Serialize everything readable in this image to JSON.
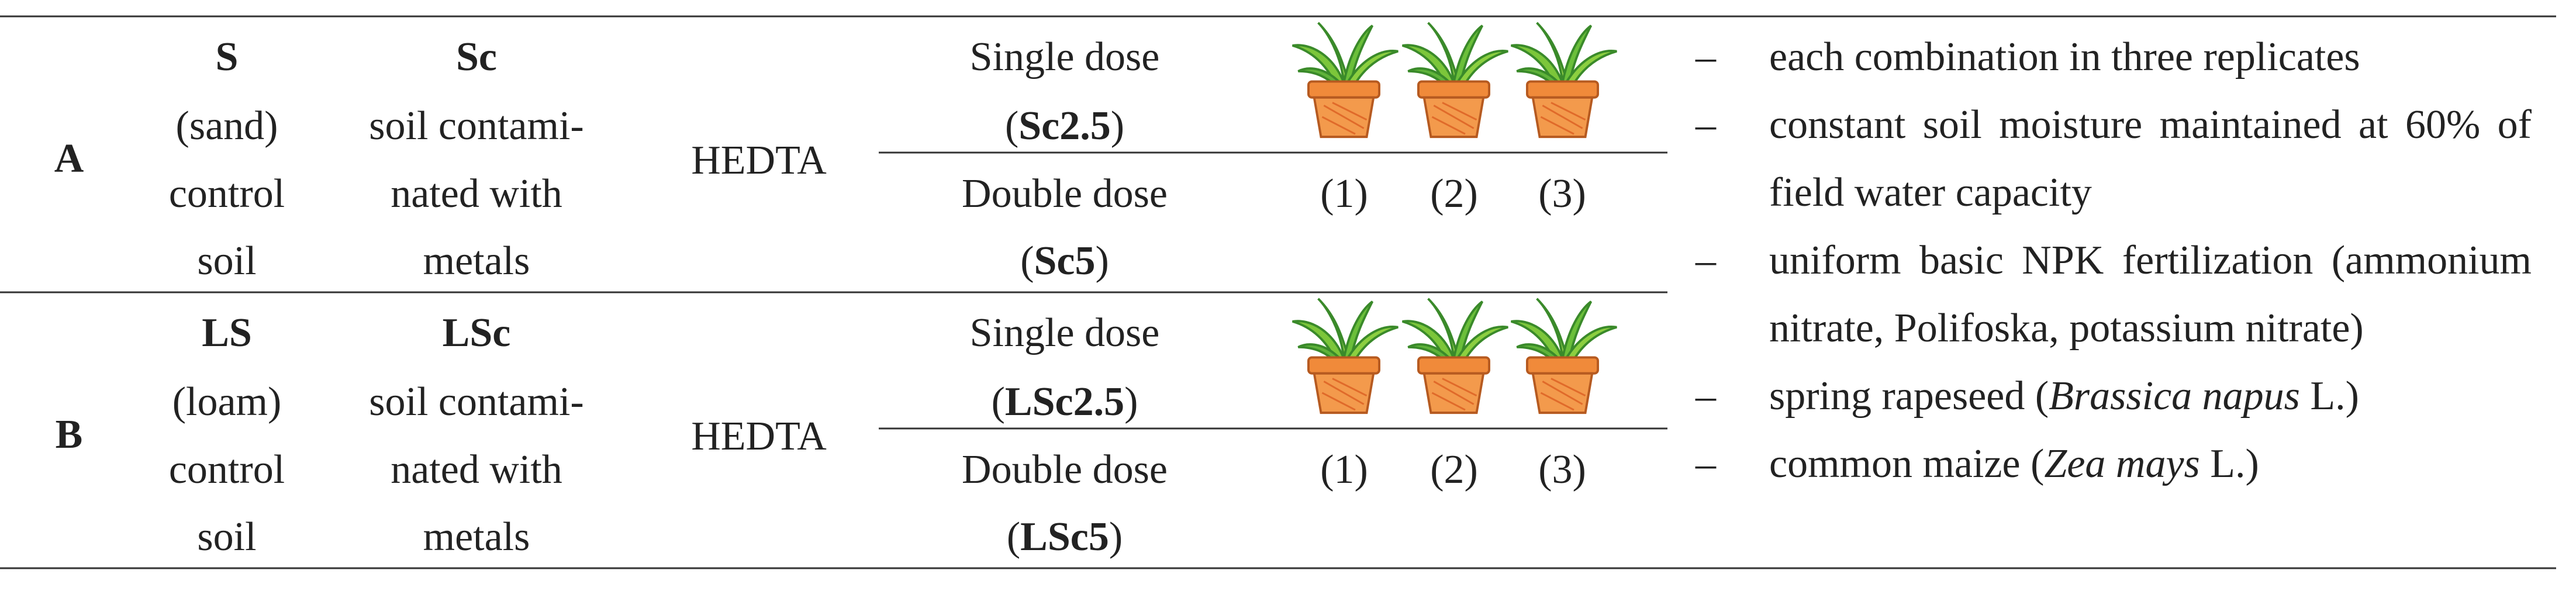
{
  "groups": [
    {
      "label": "A",
      "control": {
        "code": "S",
        "lines": [
          "(sand)",
          "control",
          "soil"
        ]
      },
      "contaminated": {
        "code": "Sc",
        "lines": [
          "soil contami-",
          "nated with",
          "metals"
        ]
      },
      "treatment": "HEDTA",
      "doses": [
        {
          "name": "Single dose",
          "code": [
            "(",
            "Sc2.5",
            ")"
          ]
        },
        {
          "name": "Double dose",
          "code": [
            "(",
            "Sc5",
            ")"
          ]
        }
      ],
      "replicates": [
        "(1)",
        "(2)",
        "(3)"
      ]
    },
    {
      "label": "B",
      "control": {
        "code": "LS",
        "lines": [
          "(loam)",
          "control",
          "soil"
        ]
      },
      "contaminated": {
        "code": "LSc",
        "lines": [
          "soil contami-",
          "nated with",
          "metals"
        ]
      },
      "treatment": "HEDTA",
      "doses": [
        {
          "name": "Single dose",
          "code": [
            "(",
            "LSc2.5",
            ")"
          ]
        },
        {
          "name": "Double dose",
          "code": [
            "(",
            "LSc5",
            ")"
          ]
        }
      ],
      "replicates": [
        "(1)",
        "(2)",
        "(3)"
      ]
    }
  ],
  "notes": [
    {
      "marker": "–",
      "parts": [
        {
          "text": "each combination in three replicates"
        }
      ]
    },
    {
      "marker": "–",
      "parts": [
        {
          "text": "constant soil moisture maintained at 60% of field water capacity"
        }
      ]
    },
    {
      "marker": "–",
      "parts": [
        {
          "text": "uniform basic NPK fertilization (ammonium nitrate, Polifoska, potassium nitrate)"
        }
      ]
    },
    {
      "marker": "–",
      "parts": [
        {
          "text": "spring rapeseed ("
        },
        {
          "text": "Brassica napus",
          "italic": true
        },
        {
          "text": " L.)"
        }
      ]
    },
    {
      "marker": "–",
      "parts": [
        {
          "text": "common maize ("
        },
        {
          "text": "Zea mays",
          "italic": true
        },
        {
          "text": " L.)"
        }
      ]
    }
  ]
}
